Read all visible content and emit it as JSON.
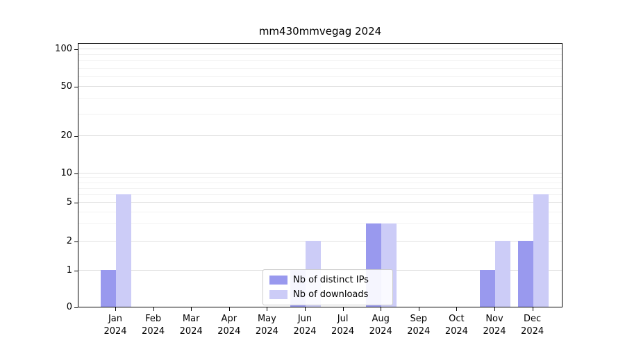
{
  "chart_data": {
    "type": "bar",
    "title": "mm430mmvegag 2024",
    "categories": [
      "Jan 2024",
      "Feb 2024",
      "Mar 2024",
      "Apr 2024",
      "May 2024",
      "Jun 2024",
      "Jul 2024",
      "Aug 2024",
      "Sep 2024",
      "Oct 2024",
      "Nov 2024",
      "Dec 2024"
    ],
    "series": [
      {
        "name": "Nb of distinct IPs",
        "color": "#9999ee",
        "values": [
          1,
          0,
          0,
          0,
          0,
          1,
          0,
          3,
          0,
          0,
          1,
          2
        ]
      },
      {
        "name": "Nb of downloads",
        "color": "#ccccf7",
        "values": [
          6,
          0,
          0,
          0,
          0,
          2,
          0,
          3,
          0,
          0,
          2,
          6
        ]
      }
    ],
    "xlabel": "",
    "ylabel": "",
    "yscale": "symlog",
    "ylim": [
      0,
      100
    ],
    "yticks": [
      0,
      1,
      2,
      5,
      10,
      20,
      50,
      100
    ],
    "y_minor_ticks": [
      3,
      4,
      6,
      7,
      8,
      9,
      30,
      40,
      60,
      70,
      80,
      90
    ],
    "grid": true,
    "legend_position": "lower center"
  }
}
